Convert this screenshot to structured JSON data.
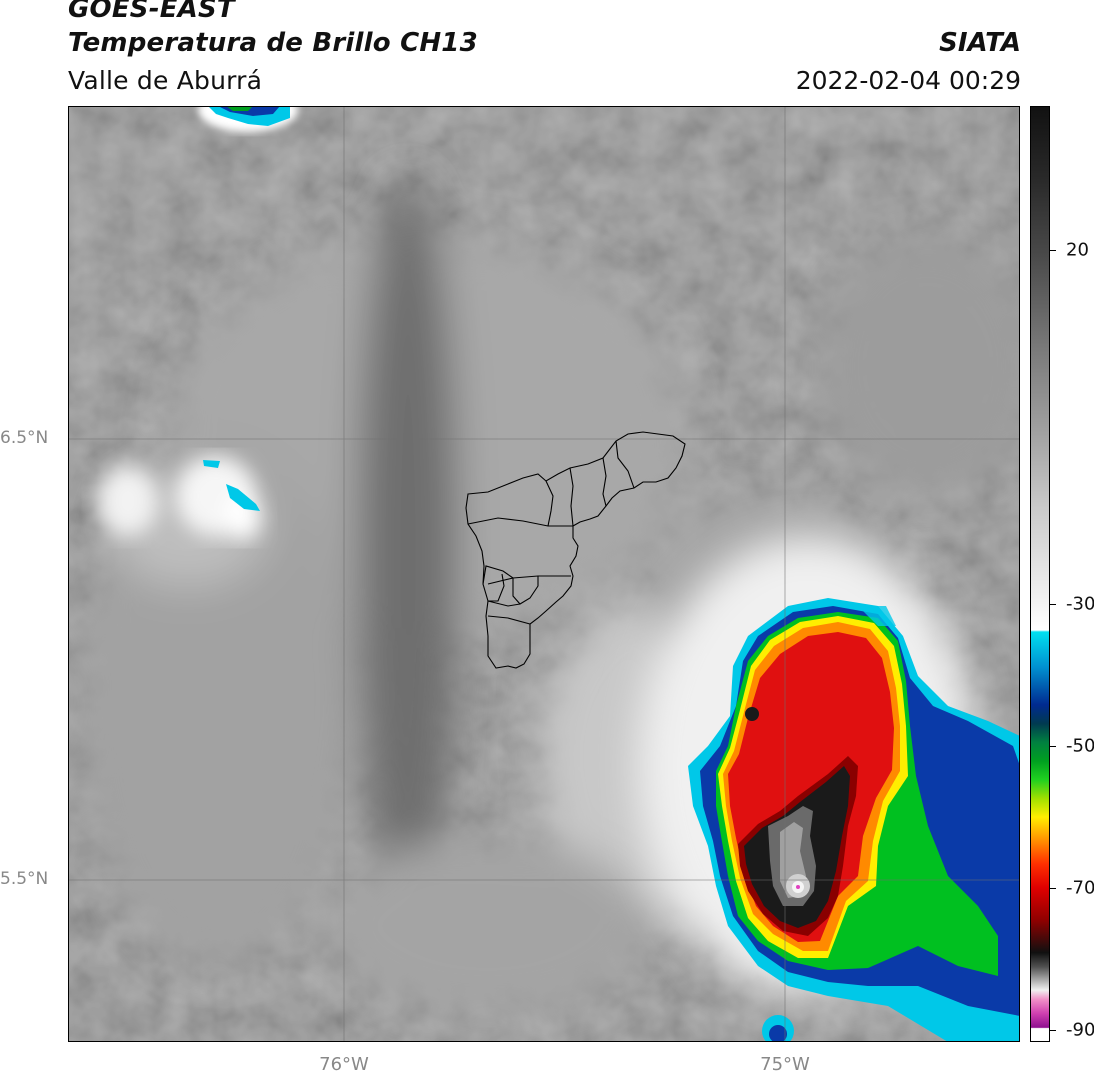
{
  "header": {
    "satellite": "GOES-EAST",
    "product": "Temperatura de Brillo CH13",
    "region": "Valle de Aburrá",
    "org": "SIATA",
    "datetime": "2022-02-04 00:29"
  },
  "axes": {
    "lat_labels": [
      "6.5°N",
      "5.5°N"
    ],
    "lon_labels": [
      "76°W",
      "75°W"
    ]
  },
  "colorbar": {
    "units_label": "",
    "ticks": [
      "20",
      "-30",
      "-50",
      "-70",
      "-90"
    ],
    "range": [
      -92,
      32
    ]
  },
  "colors": {
    "cloud_cold_core": "#1a1a1a",
    "convective_red": "#e01010",
    "convective_orange": "#ff8a00",
    "convective_yellow": "#ffee00",
    "convective_green": "#00c020",
    "convective_blue": "#0a3aa8",
    "convective_cyan": "#00c8e8",
    "background_gray": "#9a9a9a"
  }
}
